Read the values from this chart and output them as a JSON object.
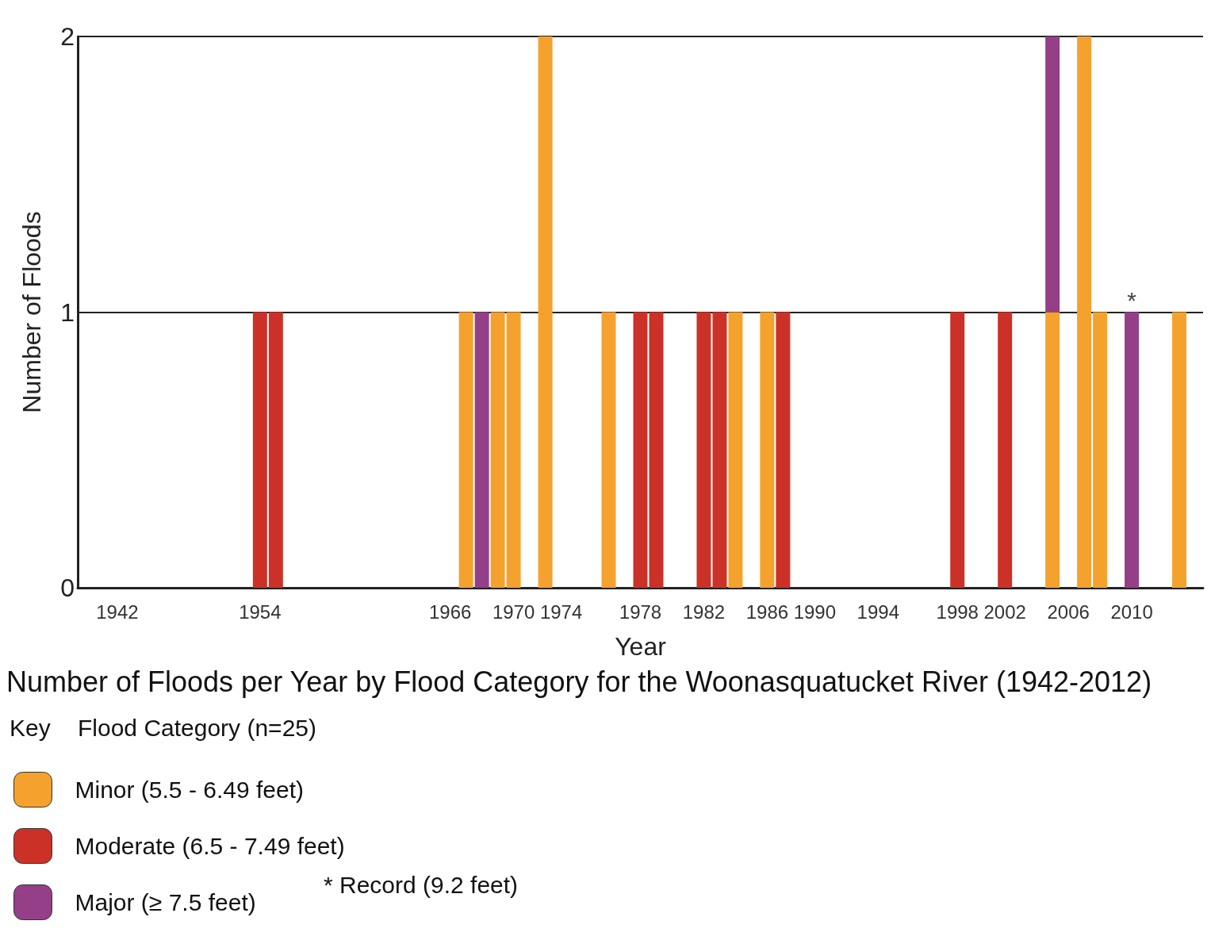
{
  "chart_data": {
    "type": "bar",
    "stacked": true,
    "title": "Number of Floods per Year by Flood Category for the Woonasquatucket River (1942-2012)",
    "xlabel": "Year",
    "ylabel": "Number of Floods",
    "legend_title": "Flood Category (n=25)",
    "legend": "bottom left",
    "grid": "y",
    "ylim": [
      0,
      2
    ],
    "yticks": [
      0,
      1,
      2
    ],
    "categories": [
      null,
      null,
      "1942",
      null,
      null,
      null,
      null,
      null,
      null,
      null,
      null,
      "1954",
      null,
      null,
      null,
      null,
      null,
      null,
      null,
      null,
      null,
      null,
      null,
      "1966",
      null,
      null,
      null,
      "1970",
      null,
      null,
      "1974",
      null,
      null,
      null,
      null,
      "1978",
      null,
      null,
      null,
      "1982",
      null,
      null,
      null,
      "1986",
      null,
      null,
      "1990",
      null,
      null,
      null,
      "1994",
      null,
      null,
      null,
      null,
      "1998",
      null,
      null,
      "2002",
      null,
      null,
      null,
      "2006",
      null,
      null,
      null,
      "2010",
      null,
      null,
      null,
      null
    ],
    "series": [
      {
        "name": "Minor (5.5 - 6.49 feet)",
        "color": "#f4a22d",
        "values": [
          null,
          null,
          null,
          null,
          null,
          null,
          null,
          null,
          null,
          null,
          null,
          null,
          null,
          null,
          null,
          null,
          null,
          null,
          null,
          null,
          null,
          null,
          null,
          null,
          1,
          null,
          1,
          1,
          null,
          2,
          null,
          null,
          null,
          1,
          null,
          null,
          null,
          null,
          null,
          null,
          null,
          1,
          null,
          1,
          null,
          null,
          null,
          null,
          null,
          null,
          null,
          null,
          null,
          null,
          null,
          null,
          null,
          null,
          null,
          null,
          null,
          1,
          null,
          2,
          1,
          null,
          null,
          null,
          null,
          1,
          null
        ]
      },
      {
        "name": "Moderate (6.5 - 7.49 feet)",
        "color": "#cc3127",
        "values": [
          null,
          null,
          null,
          null,
          null,
          null,
          null,
          null,
          null,
          null,
          null,
          1,
          1,
          null,
          null,
          null,
          null,
          null,
          null,
          null,
          null,
          null,
          null,
          null,
          null,
          null,
          null,
          null,
          null,
          null,
          null,
          null,
          null,
          null,
          null,
          1,
          1,
          null,
          null,
          1,
          1,
          null,
          null,
          null,
          1,
          null,
          null,
          null,
          null,
          null,
          null,
          null,
          null,
          null,
          null,
          1,
          null,
          null,
          1,
          null,
          null,
          null,
          null,
          null,
          null,
          null,
          null,
          null,
          null,
          null,
          null
        ]
      },
      {
        "name": "Major (≥ 7.5 feet)",
        "color": "#953f88",
        "values": [
          null,
          null,
          null,
          null,
          null,
          null,
          null,
          null,
          null,
          null,
          null,
          null,
          null,
          null,
          null,
          null,
          null,
          null,
          null,
          null,
          null,
          null,
          null,
          null,
          null,
          1,
          null,
          null,
          null,
          null,
          null,
          null,
          null,
          null,
          null,
          null,
          null,
          null,
          null,
          null,
          null,
          null,
          null,
          null,
          null,
          null,
          null,
          null,
          null,
          null,
          null,
          null,
          null,
          null,
          null,
          null,
          null,
          null,
          null,
          null,
          null,
          1,
          null,
          null,
          null,
          null,
          1,
          null,
          null,
          null,
          null
        ]
      }
    ],
    "annotations": [
      "Key",
      "* Record (9.2 feet)",
      {
        "text": "*",
        "x": "2010",
        "y": 1
      }
    ]
  }
}
